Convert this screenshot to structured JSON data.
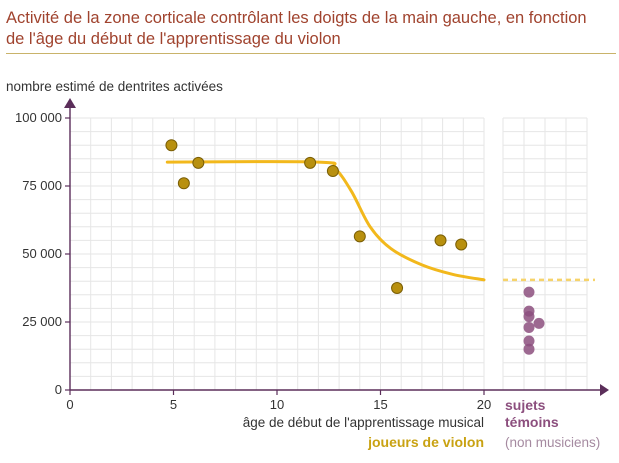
{
  "title": "Activité de la zone corticale contrôlant les doigts de la main gauche, en fonction de l'âge du début de l'apprentissage du violon",
  "chart_data": {
    "type": "scatter",
    "ylabel": "nombre estimé de dentrites activées",
    "xlabel": "âge de début de l'apprentissage musical",
    "xlim": [
      0,
      20
    ],
    "ylim": [
      0,
      100000
    ],
    "x_ticks": [
      "0",
      "5",
      "10",
      "15",
      "20"
    ],
    "y_ticks": [
      "0",
      "25 000",
      "50 000",
      "75 000",
      "100 000"
    ],
    "grid": true,
    "series": [
      {
        "name": "joueurs de violon",
        "color": "#b8900f",
        "points": [
          {
            "x": 4.9,
            "y": 90000
          },
          {
            "x": 5.5,
            "y": 76000
          },
          {
            "x": 6.2,
            "y": 83500
          },
          {
            "x": 11.6,
            "y": 83500
          },
          {
            "x": 12.7,
            "y": 80500
          },
          {
            "x": 14.0,
            "y": 56500
          },
          {
            "x": 15.8,
            "y": 37500
          },
          {
            "x": 17.9,
            "y": 55000
          },
          {
            "x": 18.9,
            "y": 53500
          }
        ]
      },
      {
        "name": "sujets témoins",
        "sublabel": "(non musiciens)",
        "color": "#8c4f7e",
        "values": [
          36000,
          29000,
          27000,
          24500,
          23000,
          18000,
          15000
        ]
      }
    ],
    "trend_curve": {
      "color": "#f2b81c",
      "points": [
        {
          "x": 4.7,
          "y": 83800
        },
        {
          "x": 12.0,
          "y": 83800
        },
        {
          "x": 12.8,
          "y": 81500
        },
        {
          "x": 13.6,
          "y": 73000
        },
        {
          "x": 14.5,
          "y": 60000
        },
        {
          "x": 15.5,
          "y": 52000
        },
        {
          "x": 17.0,
          "y": 46000
        },
        {
          "x": 18.5,
          "y": 42500
        },
        {
          "x": 20.0,
          "y": 40500
        }
      ],
      "control_level": 40500
    }
  }
}
